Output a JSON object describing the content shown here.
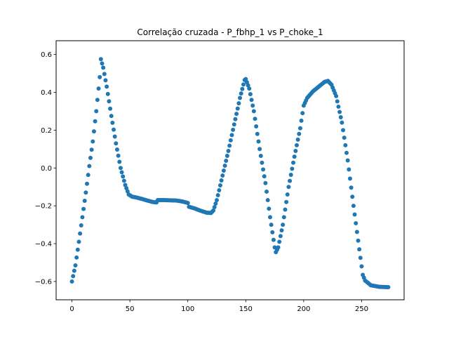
{
  "chart_data": {
    "type": "scatter",
    "title": "Correlação cruzada - P_fbhp_1 vs P_choke_1",
    "xlabel": "",
    "ylabel": "",
    "xlim": [
      -13.65,
      286.65
    ],
    "ylim": [
      -0.6967,
      0.6726
    ],
    "x_ticks": [
      0,
      50,
      100,
      150,
      200,
      250
    ],
    "y_ticks": [
      -0.6,
      -0.4,
      -0.2,
      0.0,
      0.2,
      0.4,
      0.6
    ],
    "x_tick_labels": [
      "0",
      "50",
      "100",
      "150",
      "200",
      "250"
    ],
    "y_tick_labels": [
      "−0.6",
      "−0.4",
      "−0.2",
      "0.0",
      "0.2",
      "0.4",
      "0.6"
    ],
    "grid": false,
    "legend": "none",
    "marker_color": "#1f77b4",
    "anchors": [
      [
        0,
        -0.6
      ],
      [
        3,
        -0.515
      ],
      [
        6,
        -0.39
      ],
      [
        9,
        -0.26
      ],
      [
        12,
        -0.13
      ],
      [
        15,
        0.01
      ],
      [
        18,
        0.14
      ],
      [
        21,
        0.3
      ],
      [
        24,
        0.48
      ],
      [
        25,
        0.575
      ],
      [
        27,
        0.53
      ],
      [
        30,
        0.43
      ],
      [
        34,
        0.275
      ],
      [
        38,
        0.13
      ],
      [
        42,
        0.0
      ],
      [
        46,
        -0.09
      ],
      [
        49,
        -0.14
      ],
      [
        52,
        -0.152
      ],
      [
        55,
        -0.155
      ],
      [
        60,
        -0.163
      ],
      [
        65,
        -0.172
      ],
      [
        70,
        -0.18
      ],
      [
        73,
        -0.182
      ],
      [
        74,
        -0.17
      ],
      [
        80,
        -0.17
      ],
      [
        90,
        -0.172
      ],
      [
        96,
        -0.178
      ],
      [
        100,
        -0.185
      ],
      [
        101,
        -0.205
      ],
      [
        106,
        -0.214
      ],
      [
        111,
        -0.226
      ],
      [
        116,
        -0.236
      ],
      [
        120,
        -0.238
      ],
      [
        122,
        -0.225
      ],
      [
        125,
        -0.17
      ],
      [
        130,
        -0.04
      ],
      [
        135,
        0.09
      ],
      [
        140,
        0.23
      ],
      [
        145,
        0.37
      ],
      [
        149,
        0.465
      ],
      [
        150,
        0.47
      ],
      [
        153,
        0.42
      ],
      [
        157,
        0.3
      ],
      [
        162,
        0.1
      ],
      [
        167,
        -0.08
      ],
      [
        171,
        -0.26
      ],
      [
        175,
        -0.42
      ],
      [
        176,
        -0.445
      ],
      [
        178,
        -0.42
      ],
      [
        182,
        -0.3
      ],
      [
        187,
        -0.1
      ],
      [
        192,
        0.06
      ],
      [
        197,
        0.21
      ],
      [
        200,
        0.33
      ],
      [
        203,
        0.37
      ],
      [
        208,
        0.405
      ],
      [
        213,
        0.43
      ],
      [
        218,
        0.455
      ],
      [
        221,
        0.46
      ],
      [
        224,
        0.44
      ],
      [
        228,
        0.38
      ],
      [
        233,
        0.24
      ],
      [
        238,
        0.04
      ],
      [
        243,
        -0.2
      ],
      [
        248,
        -0.43
      ],
      [
        251,
        -0.565
      ],
      [
        253,
        -0.595
      ],
      [
        258,
        -0.62
      ],
      [
        265,
        -0.628
      ],
      [
        273,
        -0.63
      ]
    ]
  }
}
